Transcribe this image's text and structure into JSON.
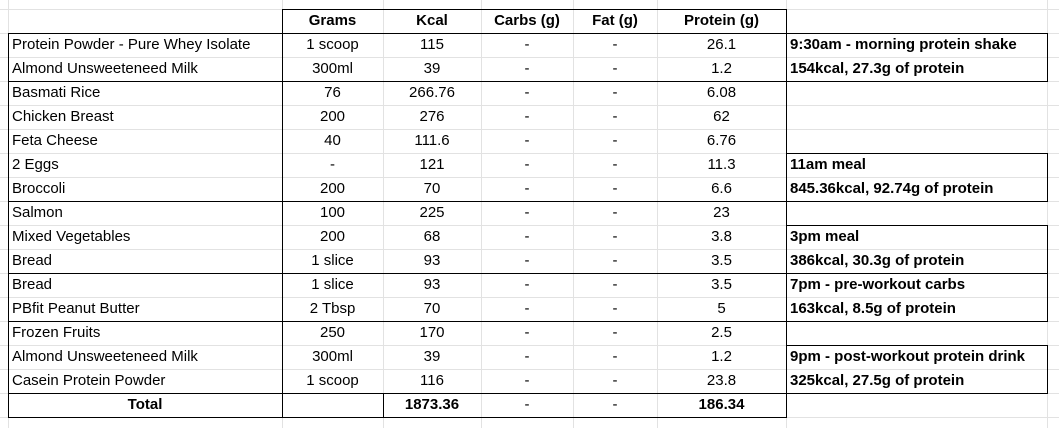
{
  "columns": [
    "",
    "Grams",
    "Kcal",
    "Carbs (g)",
    "Fat (g)",
    "Protein (g)"
  ],
  "rows": [
    {
      "food": "Protein Powder - Pure Whey Isolate",
      "grams": "1 scoop",
      "kcal": "115",
      "carbs": "-",
      "fat": "-",
      "protein": "26.1"
    },
    {
      "food": "Almond Unsweeteneed Milk",
      "grams": "300ml",
      "kcal": "39",
      "carbs": "-",
      "fat": "-",
      "protein": "1.2"
    },
    {
      "food": "Basmati Rice",
      "grams": "76",
      "kcal": "266.76",
      "carbs": "-",
      "fat": "-",
      "protein": "6.08"
    },
    {
      "food": "Chicken Breast",
      "grams": "200",
      "kcal": "276",
      "carbs": "-",
      "fat": "-",
      "protein": "62"
    },
    {
      "food": "Feta Cheese",
      "grams": "40",
      "kcal": "111.6",
      "carbs": "-",
      "fat": "-",
      "protein": "6.76"
    },
    {
      "food": "2 Eggs",
      "grams": "-",
      "kcal": "121",
      "carbs": "-",
      "fat": "-",
      "protein": "11.3"
    },
    {
      "food": "Broccoli",
      "grams": "200",
      "kcal": "70",
      "carbs": "-",
      "fat": "-",
      "protein": "6.6"
    },
    {
      "food": "Salmon",
      "grams": "100",
      "kcal": "225",
      "carbs": "-",
      "fat": "-",
      "protein": "23"
    },
    {
      "food": "Mixed Vegetables",
      "grams": "200",
      "kcal": "68",
      "carbs": "-",
      "fat": "-",
      "protein": "3.8"
    },
    {
      "food": "Bread",
      "grams": "1 slice",
      "kcal": "93",
      "carbs": "-",
      "fat": "-",
      "protein": "3.5"
    },
    {
      "food": "Bread",
      "grams": "1 slice",
      "kcal": "93",
      "carbs": "-",
      "fat": "-",
      "protein": "3.5"
    },
    {
      "food": "PBfit Peanut Butter",
      "grams": "2 Tbsp",
      "kcal": "70",
      "carbs": "-",
      "fat": "-",
      "protein": "5"
    },
    {
      "food": "Frozen Fruits",
      "grams": "250",
      "kcal": "170",
      "carbs": "-",
      "fat": "-",
      "protein": "2.5"
    },
    {
      "food": "Almond Unsweeteneed Milk",
      "grams": "300ml",
      "kcal": "39",
      "carbs": "-",
      "fat": "-",
      "protein": "1.2"
    },
    {
      "food": "Casein Protein Powder",
      "grams": "1 scoop",
      "kcal": "116",
      "carbs": "-",
      "fat": "-",
      "protein": "23.8"
    }
  ],
  "total": {
    "label": "Total",
    "grams": "",
    "kcal": "1873.36",
    "carbs": "-",
    "fat": "-",
    "protein": "186.34"
  },
  "notes": [
    {
      "row": 0,
      "text": "9:30am - morning protein shake"
    },
    {
      "row": 1,
      "text": "154kcal, 27.3g of protein"
    },
    {
      "row": 5,
      "text": "11am meal"
    },
    {
      "row": 6,
      "text": "845.36kcal, 92.74g of protein"
    },
    {
      "row": 8,
      "text": "3pm meal"
    },
    {
      "row": 9,
      "text": "386kcal, 30.3g of protein"
    },
    {
      "row": 10,
      "text": "7pm - pre-workout carbs"
    },
    {
      "row": 11,
      "text": "163kcal, 8.5g of protein"
    },
    {
      "row": 13,
      "text": "9pm - post-workout protein drink"
    },
    {
      "row": 14,
      "text": "325kcal, 27.5g of protein"
    }
  ],
  "colors": {
    "gridline": "#e2e2e2",
    "border": "#000000",
    "text": "#000000"
  }
}
